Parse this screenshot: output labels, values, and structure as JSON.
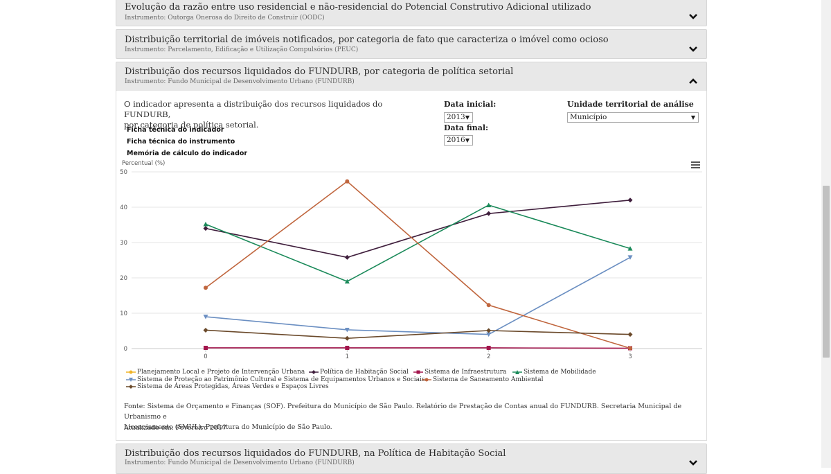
{
  "accordion": {
    "item1": {
      "title": "Evolução da razão entre uso residencial e não-residencial do Potencial Construtivo Adicional utilizado",
      "instrument": "Instrumento: Outorga Onerosa do Direito de Construir (OODC)"
    },
    "item2": {
      "title": "Distribuição territorial de imóveis notificados, por categoria de fato que caracteriza o imóvel como ocioso",
      "instrument": "Instrumento: Parcelamento, Edificação e Utilização Compulsórios (PEUC)"
    },
    "item3": {
      "title": "Distribuição dos recursos liquidados do FUNDURB, por categoria de política setorial",
      "instrument": "Instrumento: Fundo Municipal de Desenvolvimento Urbano (FUNDURB)"
    },
    "item4": {
      "title": "Distribuição dos recursos liquidados do FUNDURB, na Política de Habitação Social",
      "instrument": "Instrumento: Fundo Municipal de Desenvolvimento Urbano (FUNDURB)"
    }
  },
  "panel": {
    "description_line1": "O indicador apresenta a distribuição dos recursos liquidados do FUNDURB,",
    "description_line2": "por categoria de política setorial.",
    "links": [
      "Ficha técnica do indicador",
      "Ficha técnica do instrumento",
      "Memória de cálculo do indicador"
    ],
    "data_inicial_label": "Data inicial:",
    "data_inicial_value": "2013",
    "data_final_label": "Data final:",
    "data_final_value": "2016",
    "unidade_label": "Unidade territorial de análise",
    "unidade_value": "Município",
    "source_line1": "Fonte: Sistema de Orçamento e Finanças (SOF). Prefeitura do Município de São Paulo. Relatório de Prestação de Contas anual do FUNDURB. Secretaria Municipal de Urbanismo e",
    "source_line2": "Licenciamento (SMUL). Prefeitura do Município de São Paulo.",
    "updated": "Atualizado em: Fevereiro 2017"
  },
  "chart_data": {
    "type": "line",
    "title": "",
    "ylabel": "Percentual (%)",
    "xlabel": "",
    "x": [
      0,
      1,
      2,
      3
    ],
    "ylim": [
      0,
      50
    ],
    "yticks": [
      0,
      10,
      20,
      30,
      40,
      50
    ],
    "grid": true,
    "legend": "bottom",
    "series": [
      {
        "name": "Planejamento Local e Projeto de Intervenção Urbana",
        "values": [
          null,
          null,
          null,
          null
        ],
        "color": "#f0b429",
        "marker": "circle"
      },
      {
        "name": "Política de Habitação Social",
        "values": [
          34,
          25.8,
          38.2,
          42
        ],
        "color": "#3f1e3c",
        "marker": "diamond"
      },
      {
        "name": "Sistema de Infraestrutura",
        "values": [
          0.2,
          0.2,
          0.2,
          0.1
        ],
        "color": "#a3154c",
        "marker": "square"
      },
      {
        "name": "Sistema de Mobilidade",
        "values": [
          35.2,
          19,
          40.6,
          28.3
        ],
        "color": "#1b8a5a",
        "marker": "triangle"
      },
      {
        "name": "Sistema de Proteção ao Patrimônio Cultural e Sistema de Equipamentos Urbanos e Sociais",
        "values": [
          9,
          5.3,
          4,
          25.8
        ],
        "color": "#6b8fc2",
        "marker": "triangle-down"
      },
      {
        "name": "Sistema de Saneamento Ambiental",
        "values": [
          17.2,
          47.3,
          12.3,
          0.1
        ],
        "color": "#c0663e",
        "marker": "circle"
      },
      {
        "name": "Sistema de Áreas Protegidas, Áreas Verdes e Espaços Livres",
        "values": [
          5.2,
          2.9,
          5.1,
          4
        ],
        "color": "#6b4a2b",
        "marker": "diamond"
      }
    ]
  }
}
